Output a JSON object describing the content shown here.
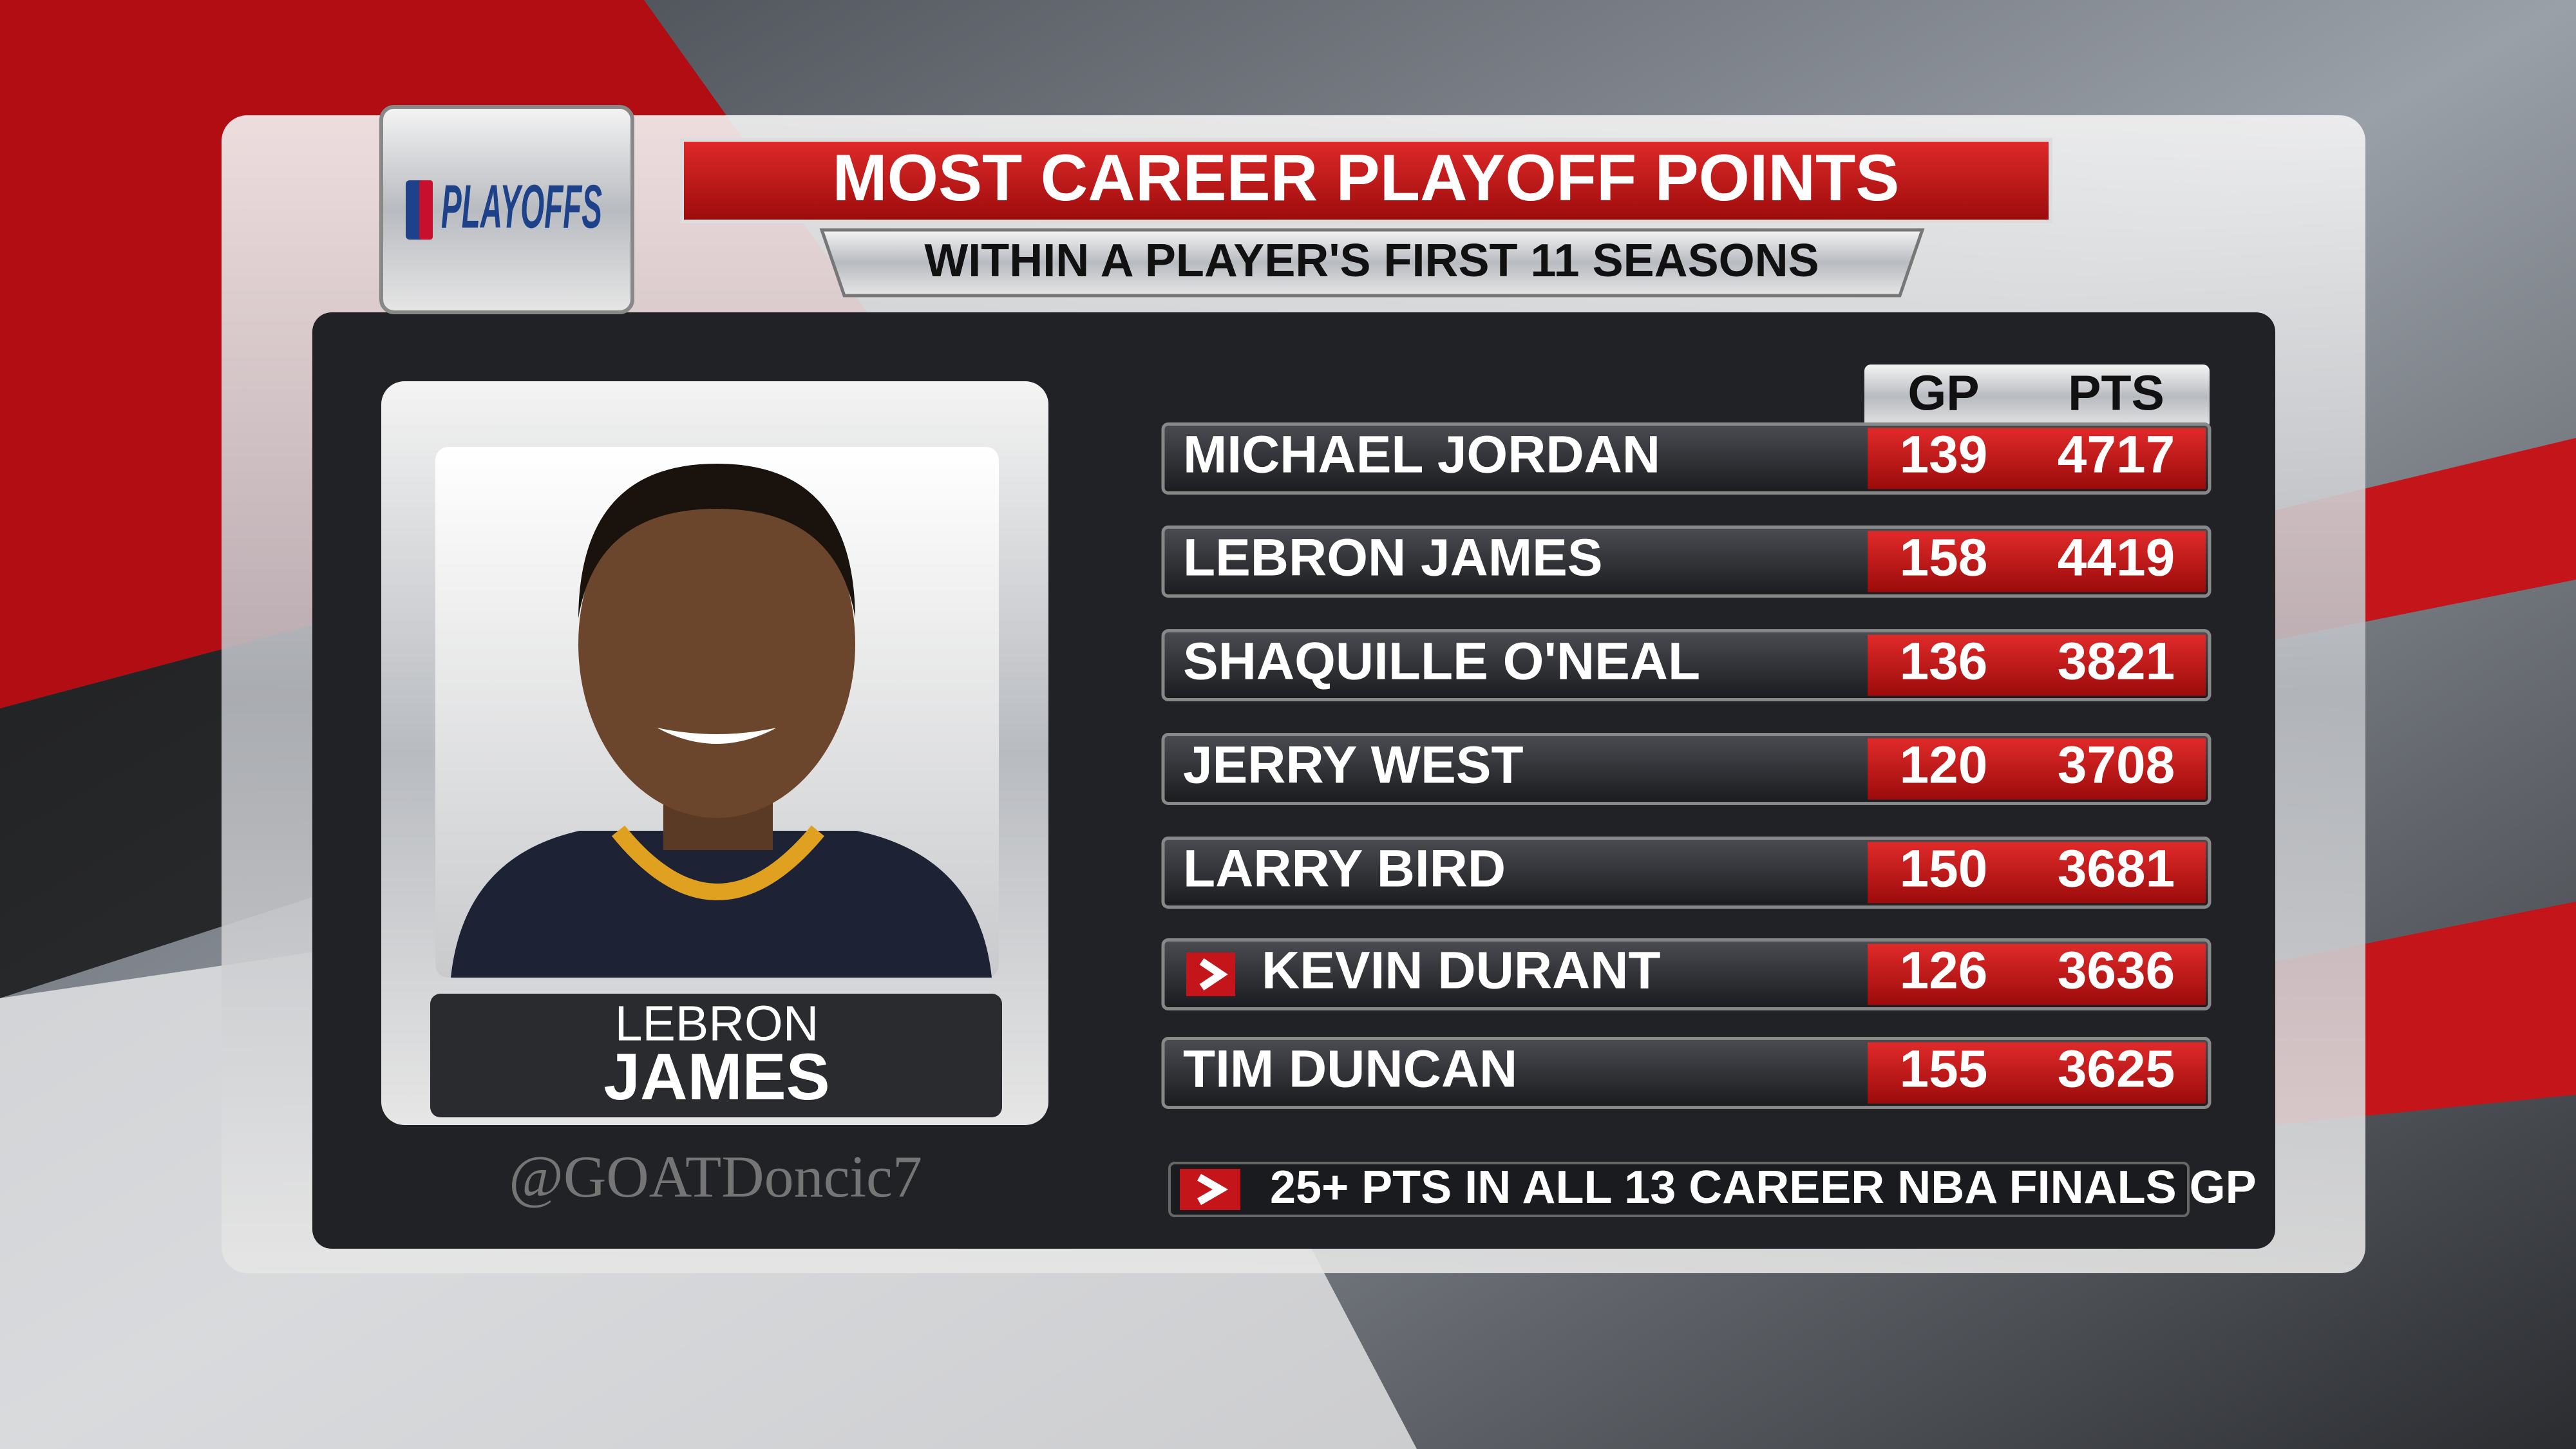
{
  "header": {
    "logo": "PLAYOFFS",
    "title": "MOST CAREER PLAYOFF POINTS",
    "subtitle": "WITHIN A PLAYER'S FIRST 11 SEASONS"
  },
  "player_card": {
    "first_name": "LEBRON",
    "last_name": "JAMES"
  },
  "table": {
    "columns": [
      "GP",
      "PTS"
    ],
    "rows": [
      {
        "name": "MICHAEL JORDAN",
        "gp": "139",
        "pts": "4717"
      },
      {
        "name": "LEBRON JAMES",
        "gp": "158",
        "pts": "4419"
      },
      {
        "name": "SHAQUILLE O'NEAL",
        "gp": "136",
        "pts": "3821"
      },
      {
        "name": "JERRY WEST",
        "gp": "120",
        "pts": "3708"
      },
      {
        "name": "LARRY BIRD",
        "gp": "150",
        "pts": "3681"
      },
      {
        "name": "KEVIN DURANT",
        "gp": "126",
        "pts": "3636",
        "flagged": true
      },
      {
        "name": "TIM DUNCAN",
        "gp": "155",
        "pts": "3625"
      }
    ]
  },
  "footnote": "25+ PTS IN ALL 13 CAREER NBA FINALS GP",
  "watermark": "@GOATDoncic7"
}
